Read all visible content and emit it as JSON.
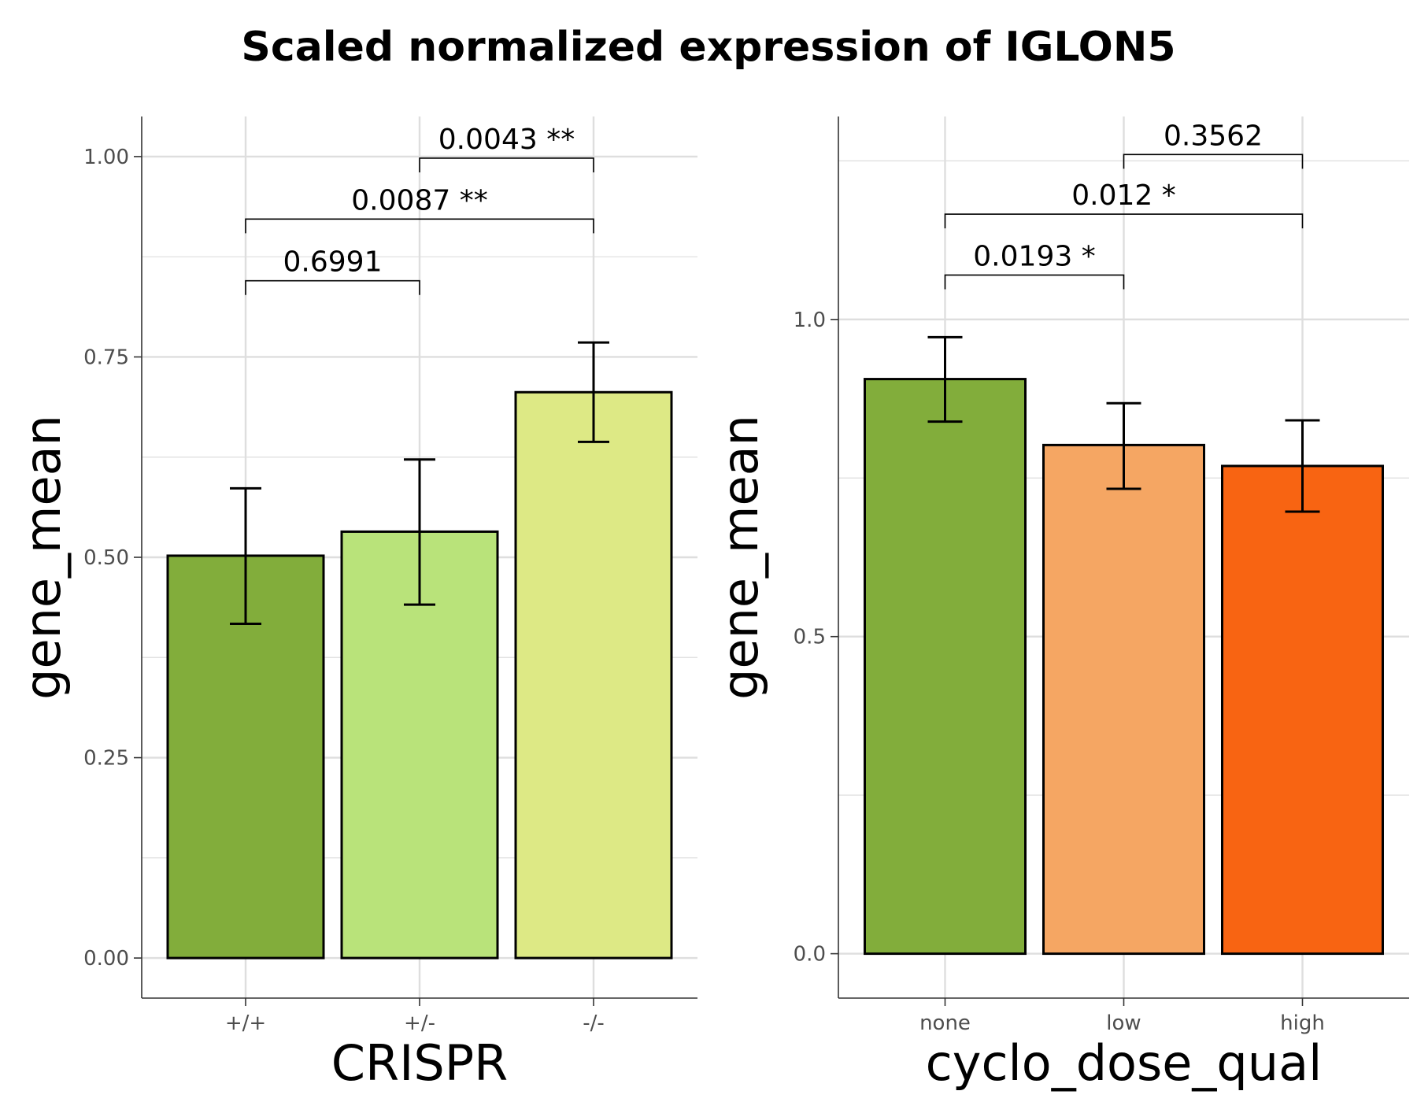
{
  "figure_title": "Scaled normalized expression of IGLON5",
  "chart_data": [
    {
      "type": "bar",
      "title": "",
      "xlabel": "CRISPR",
      "ylabel": "gene_mean",
      "ylim": [
        -0.05,
        1.05
      ],
      "yticks": [
        0.0,
        0.25,
        0.5,
        0.75,
        1.0
      ],
      "ytick_labels": [
        "0.00",
        "0.25",
        "0.50",
        "0.75",
        "1.00"
      ],
      "categories": [
        "+/+",
        "+/-",
        "-/-"
      ],
      "values": [
        0.502,
        0.532,
        0.706
      ],
      "error_low": [
        0.417,
        0.441,
        0.644
      ],
      "error_high": [
        0.586,
        0.622,
        0.768
      ],
      "colors": [
        "#82ad3b",
        "#b9e37a",
        "#dde985"
      ],
      "comparisons": [
        {
          "from": 0,
          "to": 1,
          "label": "0.6991",
          "y": 0.845
        },
        {
          "from": 0,
          "to": 2,
          "label": "0.0087 **",
          "y": 0.922
        },
        {
          "from": 1,
          "to": 2,
          "label": "0.0043 **",
          "y": 0.998
        }
      ],
      "grid": true
    },
    {
      "type": "bar",
      "title": "",
      "xlabel": "cyclo_dose_qual",
      "ylabel": "gene_mean",
      "ylim": [
        -0.07,
        1.32
      ],
      "yticks": [
        0.0,
        0.5,
        1.0
      ],
      "ytick_labels": [
        "0.0",
        "0.5",
        "1.0"
      ],
      "categories": [
        "none",
        "low",
        "high"
      ],
      "values": [
        0.906,
        0.802,
        0.769
      ],
      "error_low": [
        0.839,
        0.733,
        0.697
      ],
      "error_high": [
        0.972,
        0.868,
        0.841
      ],
      "colors": [
        "#82ad3b",
        "#f5a663",
        "#f86412"
      ],
      "comparisons": [
        {
          "from": 0,
          "to": 1,
          "label": "0.0193 *",
          "y": 1.07
        },
        {
          "from": 0,
          "to": 2,
          "label": "0.012 *",
          "y": 1.166
        },
        {
          "from": 1,
          "to": 2,
          "label": "0.3562",
          "y": 1.26
        }
      ],
      "grid": true
    }
  ]
}
